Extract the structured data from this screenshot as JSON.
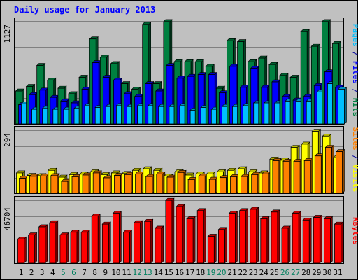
{
  "chart_data": {
    "type": "bar",
    "title": "Daily usage for January 2013",
    "x": [
      1,
      2,
      3,
      4,
      5,
      6,
      7,
      8,
      9,
      10,
      11,
      12,
      13,
      14,
      15,
      16,
      17,
      18,
      19,
      20,
      21,
      22,
      23,
      24,
      25,
      26,
      27,
      28,
      29,
      30,
      31
    ],
    "weekend_days": [
      5,
      6,
      12,
      13,
      19,
      20,
      26,
      27
    ],
    "panels": [
      {
        "name": "pages-files-hits",
        "ytick": "1127",
        "ymax": 1127,
        "legend": [
          {
            "label": "Pages",
            "color": "#00c0ff"
          },
          {
            "label": " / ",
            "color": "#00009a"
          },
          {
            "label": "Files",
            "color": "#0000ff"
          },
          {
            "label": " / ",
            "color": "#00009a"
          },
          {
            "label": "Hits",
            "color": "#008040"
          }
        ],
        "series": [
          {
            "name": "Hits",
            "color": "#008040",
            "values": [
              360,
              410,
              640,
              480,
              390,
              330,
              510,
              930,
              730,
              660,
              440,
              380,
              1090,
              440,
              1120,
              680,
              680,
              680,
              630,
              390,
              910,
              900,
              680,
              720,
              650,
              530,
              510,
              1010,
              850,
              1120,
              880
            ]
          },
          {
            "name": "Files",
            "color": "#0000ff",
            "values": [
              210,
              320,
              370,
              290,
              250,
              230,
              380,
              670,
              510,
              480,
              330,
              300,
              440,
              360,
              640,
              500,
              520,
              540,
              540,
              340,
              630,
              400,
              610,
              400,
              460,
              300,
              260,
              300,
              420,
              570,
              400
            ]
          },
          {
            "name": "Pages",
            "color": "#00c0ff",
            "values": [
              220,
              160,
              170,
              160,
              160,
              170,
              200,
              180,
              190,
              200,
              190,
              200,
              200,
              190,
              190,
              200,
              150,
              180,
              160,
              190,
              190,
              200,
              230,
              230,
              230,
              250,
              250,
              250,
              350,
              440,
              380
            ]
          }
        ]
      },
      {
        "name": "sites-visits",
        "ytick": "294",
        "ymax": 294,
        "legend": [
          {
            "label": "Sites",
            "color": "#ff8000"
          },
          {
            "label": " / ",
            "color": "#00009a"
          },
          {
            "label": "Visits",
            "color": "#ffff00"
          }
        ],
        "series": [
          {
            "name": "Visits",
            "color": "#ffff00",
            "values": [
              95,
              83,
              82,
              107,
              75,
              87,
              89,
              100,
              87,
              95,
              92,
              107,
              114,
              107,
              80,
              100,
              85,
              90,
              90,
              100,
              107,
              114,
              100,
              95,
              159,
              154,
              214,
              229,
              289,
              267,
              166
            ]
          },
          {
            "name": "Sites",
            "color": "#ff8000",
            "values": [
              70,
              79,
              80,
              82,
              55,
              77,
              85,
              95,
              72,
              83,
              87,
              90,
              78,
              90,
              75,
              97,
              64,
              80,
              65,
              73,
              77,
              78,
              87,
              90,
              152,
              149,
              149,
              152,
              174,
              214,
              194
            ]
          }
        ]
      },
      {
        "name": "kbytes",
        "ytick": "46704",
        "ymax": 46704,
        "legend": [
          {
            "label": "KBytes",
            "color": "#ff0000"
          }
        ],
        "series": [
          {
            "name": "KBytes",
            "color": "#ff0000",
            "values": [
              18000,
              21000,
              27000,
              30000,
              21000,
              23000,
              23000,
              35000,
              29000,
              37000,
              23000,
              30000,
              31000,
              26000,
              46600,
              42000,
              33000,
              39000,
              20000,
              25000,
              37000,
              39000,
              40000,
              33000,
              38000,
              26000,
              37000,
              32000,
              34000,
              33000,
              29000
            ]
          }
        ]
      }
    ]
  }
}
